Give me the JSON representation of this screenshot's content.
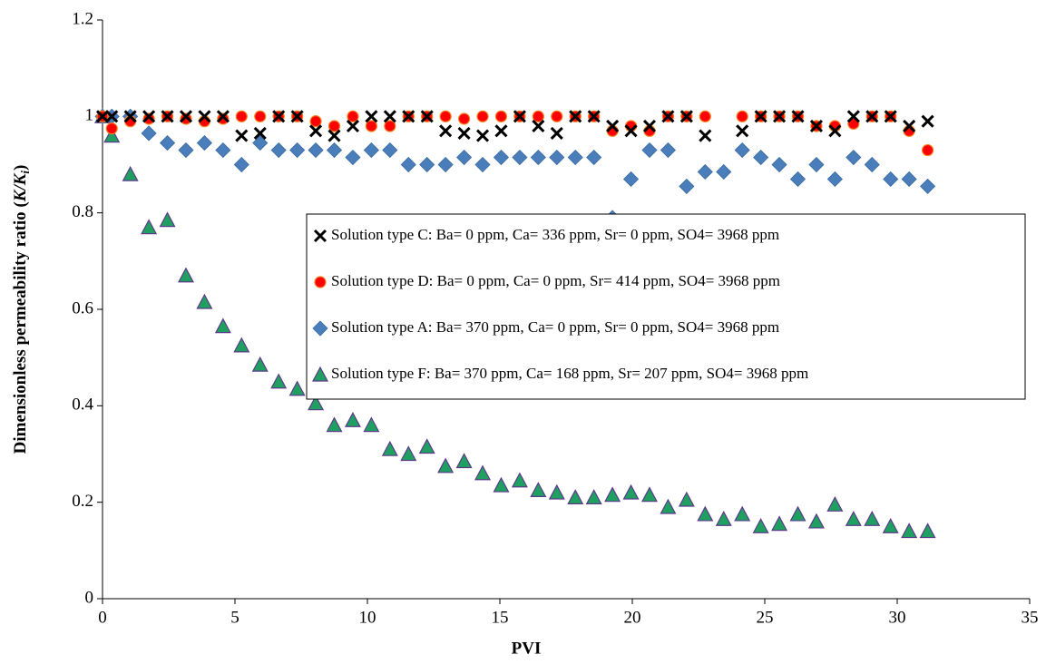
{
  "chart_data": {
    "type": "scatter",
    "x_label": "PVI",
    "y_label": {
      "text": "Dimensionless permeability ratio (",
      "italic": "K/K",
      "subscript": "i",
      "close": ")"
    },
    "x": [
      0,
      0.35,
      1.05,
      1.75,
      2.45,
      3.15,
      3.85,
      4.55,
      5.25,
      5.95,
      6.65,
      7.35,
      8.05,
      8.75,
      9.45,
      10.15,
      10.85,
      11.55,
      12.25,
      12.95,
      13.65,
      14.35,
      15.05,
      15.75,
      16.45,
      17.15,
      17.85,
      18.55,
      19.25,
      19.95,
      20.65,
      21.35,
      22.05,
      22.75,
      23.45,
      24.15,
      24.85,
      25.55,
      26.25,
      26.95,
      27.65,
      28.35,
      29.05,
      29.75,
      30.45,
      31.15
    ],
    "series": [
      {
        "name": "Solution type C: Ba= 0 ppm, Ca= 336 ppm, Sr= 0 ppm, SO4= 3968 ppm",
        "marker": "x",
        "color": "#000000",
        "values": [
          1,
          1,
          1,
          1,
          1,
          1,
          1,
          1,
          0.96,
          0.965,
          1,
          1,
          0.97,
          0.96,
          0.98,
          1,
          1,
          1,
          1,
          0.97,
          0.965,
          0.96,
          0.97,
          1,
          0.98,
          0.965,
          1,
          1,
          0.98,
          0.97,
          0.98,
          1,
          1,
          0.96,
          null,
          0.97,
          1,
          1,
          1,
          0.98,
          0.97,
          1,
          1,
          1,
          0.98,
          0.99
        ]
      },
      {
        "name": "Solution type D: Ba= 0 ppm, Ca= 0 ppm, Sr= 414 ppm, SO4= 3968 ppm",
        "marker": "circle",
        "color": "#ff0000",
        "values": [
          1,
          0.975,
          0.99,
          0.995,
          1,
          0.995,
          0.99,
          0.995,
          1,
          1,
          1,
          1,
          0.99,
          0.98,
          1,
          0.98,
          0.98,
          1,
          1,
          1,
          0.995,
          1,
          1,
          1,
          1,
          1,
          1,
          1,
          0.97,
          0.98,
          0.97,
          1,
          1,
          1,
          null,
          1,
          1,
          1,
          1,
          0.98,
          0.98,
          0.985,
          1,
          1,
          0.97,
          0.93
        ]
      },
      {
        "name": "Solution type A: Ba= 370 ppm, Ca= 0 ppm, Sr= 0 ppm, SO4= 3968 ppm",
        "marker": "diamond",
        "color": "#4a7ebb",
        "values": [
          1,
          1,
          1,
          0.965,
          0.945,
          0.93,
          0.945,
          0.93,
          0.9,
          0.945,
          0.93,
          0.93,
          0.93,
          0.93,
          0.915,
          0.93,
          0.93,
          0.9,
          0.9,
          0.9,
          0.915,
          0.9,
          0.915,
          0.915,
          0.915,
          0.915,
          0.915,
          0.915,
          0.79,
          0.87,
          0.93,
          0.93,
          0.855,
          0.885,
          0.885,
          0.93,
          0.915,
          0.9,
          0.87,
          0.9,
          0.87,
          0.915,
          0.9,
          0.87,
          0.87,
          0.855
        ]
      },
      {
        "name": "Solution type F: Ba= 370 ppm, Ca= 168 ppm, Sr= 207 ppm, SO4= 3968 ppm",
        "marker": "triangle",
        "color": "#1fa060",
        "values": [
          1,
          0.96,
          0.88,
          0.77,
          0.785,
          0.67,
          0.615,
          0.565,
          0.525,
          0.485,
          0.45,
          0.435,
          0.405,
          0.36,
          0.37,
          0.36,
          0.31,
          0.3,
          0.315,
          0.275,
          0.285,
          0.26,
          0.235,
          0.245,
          0.225,
          0.22,
          0.21,
          0.21,
          0.215,
          0.22,
          0.215,
          0.19,
          0.205,
          0.175,
          0.165,
          0.175,
          0.15,
          0.155,
          0.175,
          0.16,
          0.195,
          0.165,
          0.165,
          0.15,
          0.14,
          0.14
        ]
      }
    ],
    "xlim": [
      0,
      35
    ],
    "xticks": [
      0,
      5,
      10,
      15,
      20,
      25,
      30,
      35
    ],
    "ylim": [
      0,
      1.2
    ],
    "yticks": [
      0,
      0.2,
      0.4,
      0.6,
      0.8,
      1,
      1.2
    ],
    "grid": false
  }
}
